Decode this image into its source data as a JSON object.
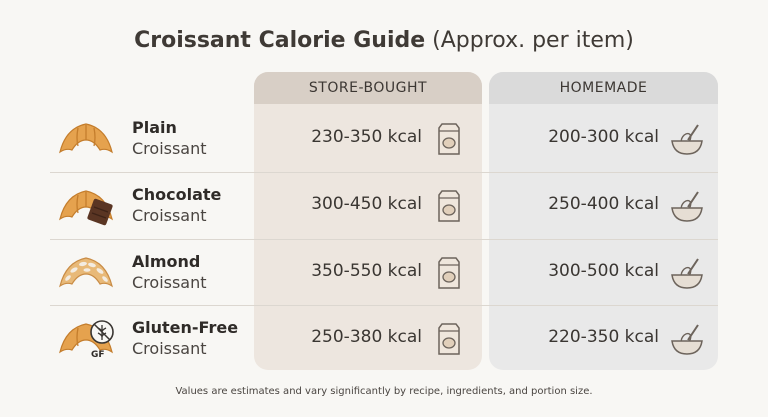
{
  "title": {
    "main": "Croissant Calorie Guide",
    "sub": "(Approx. per item)"
  },
  "columns": {
    "store": "STORE-BOUGHT",
    "home": "HOMEMADE"
  },
  "rows": [
    {
      "name1": "Plain",
      "name2": "Croissant",
      "store": "230-350 kcal",
      "home": "200-300 kcal",
      "icon": "croissant-icon"
    },
    {
      "name1": "Chocolate",
      "name2": "Croissant",
      "store": "300-450 kcal",
      "home": "250-400 kcal",
      "icon": "chocolate-croissant-icon"
    },
    {
      "name1": "Almond",
      "name2": "Croissant",
      "store": "350-550 kcal",
      "home": "300-500 kcal",
      "icon": "almond-croissant-icon"
    },
    {
      "name1": "Gluten-Free",
      "name2": "Croissant",
      "store": "250-380 kcal",
      "home": "220-350 kcal",
      "icon": "gluten-free-croissant-icon",
      "badge": "GF"
    }
  ],
  "footnote": "Values are estimates and vary significantly by recipe, ingredients, and portion size.",
  "colors": {
    "store_column": "#ede6df",
    "home_column": "#e9e9e9",
    "croissant": "#e5a24e"
  }
}
